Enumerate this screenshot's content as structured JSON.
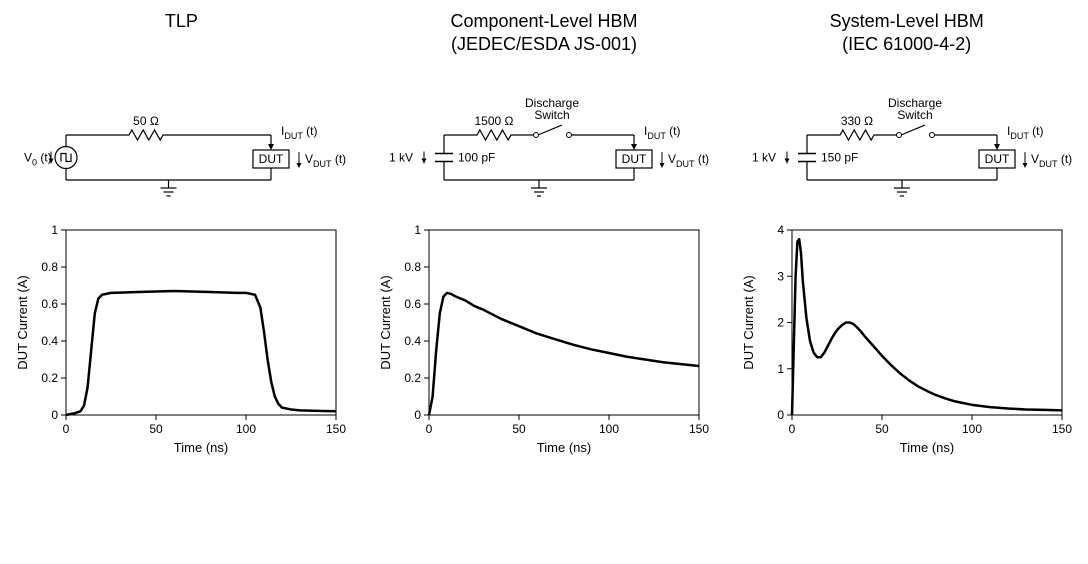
{
  "panels": [
    {
      "title_line1": "TLP",
      "title_line2": "",
      "circuit": {
        "type": "tlp",
        "r_label": "50 Ω",
        "source_label": "V₀ (t)",
        "dut_label": "DUT",
        "idut_label": "I_DUT (t)",
        "vdut_label": "V_DUT (t)"
      },
      "chart": {
        "xlabel": "Time (ns)",
        "ylabel": "DUT Current (A)",
        "xlim": [
          0,
          150
        ],
        "ylim": [
          0,
          1
        ],
        "xticks": [
          0,
          50,
          100,
          150
        ],
        "yticks": [
          0,
          0.2,
          0.4,
          0.6,
          0.8,
          1
        ],
        "line_color": "#000000",
        "line_width": 2.5,
        "data": [
          [
            0,
            0
          ],
          [
            5,
            0.01
          ],
          [
            8,
            0.02
          ],
          [
            10,
            0.05
          ],
          [
            12,
            0.15
          ],
          [
            14,
            0.35
          ],
          [
            16,
            0.55
          ],
          [
            18,
            0.63
          ],
          [
            20,
            0.65
          ],
          [
            25,
            0.66
          ],
          [
            40,
            0.665
          ],
          [
            60,
            0.67
          ],
          [
            80,
            0.665
          ],
          [
            95,
            0.66
          ],
          [
            100,
            0.66
          ],
          [
            105,
            0.65
          ],
          [
            108,
            0.58
          ],
          [
            110,
            0.45
          ],
          [
            112,
            0.3
          ],
          [
            114,
            0.18
          ],
          [
            116,
            0.1
          ],
          [
            118,
            0.06
          ],
          [
            120,
            0.04
          ],
          [
            125,
            0.03
          ],
          [
            130,
            0.025
          ],
          [
            140,
            0.022
          ],
          [
            150,
            0.02
          ]
        ]
      }
    },
    {
      "title_line1": "Component-Level HBM",
      "title_line2": "(JEDEC/ESDA JS-001)",
      "circuit": {
        "type": "hbm",
        "r_label": "1500 Ω",
        "c_label": "100 pF",
        "v_label": "1 kV",
        "switch_label": "Discharge\nSwitch",
        "dut_label": "DUT",
        "idut_label": "I_DUT (t)",
        "vdut_label": "V_DUT (t)"
      },
      "chart": {
        "xlabel": "Time (ns)",
        "ylabel": "DUT Current (A)",
        "xlim": [
          0,
          150
        ],
        "ylim": [
          0,
          1
        ],
        "xticks": [
          0,
          50,
          100,
          150
        ],
        "yticks": [
          0,
          0.2,
          0.4,
          0.6,
          0.8,
          1
        ],
        "line_color": "#000000",
        "line_width": 2.5,
        "data": [
          [
            0,
            0
          ],
          [
            2,
            0.1
          ],
          [
            4,
            0.35
          ],
          [
            6,
            0.55
          ],
          [
            8,
            0.64
          ],
          [
            10,
            0.66
          ],
          [
            12,
            0.655
          ],
          [
            15,
            0.64
          ],
          [
            20,
            0.62
          ],
          [
            25,
            0.59
          ],
          [
            30,
            0.57
          ],
          [
            35,
            0.545
          ],
          [
            40,
            0.52
          ],
          [
            50,
            0.48
          ],
          [
            60,
            0.44
          ],
          [
            70,
            0.41
          ],
          [
            80,
            0.38
          ],
          [
            90,
            0.355
          ],
          [
            100,
            0.335
          ],
          [
            110,
            0.315
          ],
          [
            120,
            0.3
          ],
          [
            130,
            0.285
          ],
          [
            140,
            0.275
          ],
          [
            150,
            0.265
          ]
        ]
      }
    },
    {
      "title_line1": "System-Level HBM",
      "title_line2": "(IEC 61000-4-2)",
      "circuit": {
        "type": "hbm",
        "r_label": "330 Ω",
        "c_label": "150 pF",
        "v_label": "1 kV",
        "switch_label": "Discharge\nSwitch",
        "dut_label": "DUT",
        "idut_label": "I_DUT (t)",
        "vdut_label": "V_DUT (t)"
      },
      "chart": {
        "xlabel": "Time (ns)",
        "ylabel": "DUT Current (A)",
        "xlim": [
          0,
          150
        ],
        "ylim": [
          0,
          4
        ],
        "xticks": [
          0,
          50,
          100,
          150
        ],
        "yticks": [
          0,
          1,
          2,
          3,
          4
        ],
        "line_color": "#000000",
        "line_width": 2.5,
        "data": [
          [
            0,
            0
          ],
          [
            1,
            1.5
          ],
          [
            2,
            3.0
          ],
          [
            3,
            3.75
          ],
          [
            4,
            3.8
          ],
          [
            5,
            3.5
          ],
          [
            6,
            2.9
          ],
          [
            8,
            2.1
          ],
          [
            10,
            1.6
          ],
          [
            12,
            1.35
          ],
          [
            14,
            1.25
          ],
          [
            16,
            1.25
          ],
          [
            18,
            1.35
          ],
          [
            20,
            1.5
          ],
          [
            22,
            1.65
          ],
          [
            24,
            1.78
          ],
          [
            26,
            1.88
          ],
          [
            28,
            1.95
          ],
          [
            30,
            2.0
          ],
          [
            32,
            2.0
          ],
          [
            34,
            1.97
          ],
          [
            36,
            1.9
          ],
          [
            38,
            1.82
          ],
          [
            40,
            1.72
          ],
          [
            45,
            1.5
          ],
          [
            50,
            1.28
          ],
          [
            55,
            1.08
          ],
          [
            60,
            0.9
          ],
          [
            65,
            0.75
          ],
          [
            70,
            0.62
          ],
          [
            75,
            0.52
          ],
          [
            80,
            0.43
          ],
          [
            85,
            0.36
          ],
          [
            90,
            0.3
          ],
          [
            95,
            0.26
          ],
          [
            100,
            0.22
          ],
          [
            110,
            0.17
          ],
          [
            120,
            0.14
          ],
          [
            130,
            0.12
          ],
          [
            140,
            0.11
          ],
          [
            150,
            0.1
          ]
        ]
      }
    }
  ],
  "chart_style": {
    "background": "#ffffff",
    "axis_color": "#000000",
    "tick_len": 5,
    "font_size_label": 13,
    "font_size_tick": 12
  }
}
